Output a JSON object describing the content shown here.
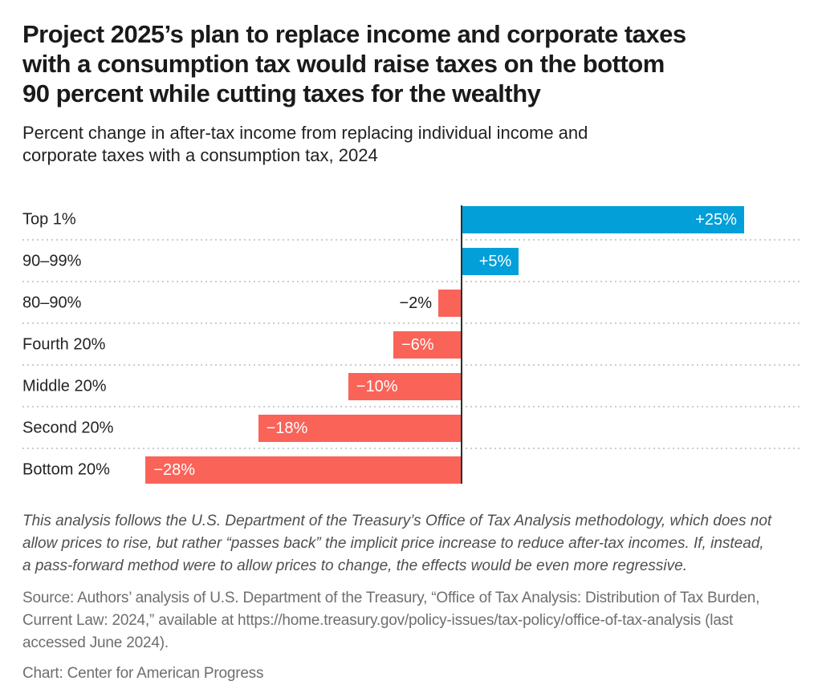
{
  "chart_data": {
    "type": "bar",
    "orientation": "horizontal",
    "title": "Project 2025’s plan to replace income and corporate taxes with a consumption tax would raise taxes on the bottom 90 percent while cutting taxes for the wealthy",
    "title_lines": [
      "Project 2025’s plan to replace income and corporate taxes",
      "with a consumption tax would raise taxes on the bottom",
      "90 percent while cutting taxes for the wealthy"
    ],
    "subtitle": "Percent change in after-tax income from replacing individual income and corporate taxes with a consumption tax, 2024",
    "subtitle_lines": [
      "Percent change in after-tax income from replacing individual income and",
      "corporate taxes with a consumption tax, 2024"
    ],
    "categories": [
      "Top 1%",
      "90–99%",
      "80–90%",
      "Fourth 20%",
      "Middle 20%",
      "Second 20%",
      "Bottom 20%"
    ],
    "values": [
      25,
      5,
      -2,
      -6,
      -10,
      -18,
      -28
    ],
    "value_labels": [
      "+25%",
      "+5%",
      "−2%",
      "−6%",
      "−10%",
      "−18%",
      "−28%"
    ],
    "unit": "%",
    "baseline": 0,
    "xlim": [
      -39,
      30
    ],
    "grid": "dotted horizontal row separators",
    "legend": "none",
    "positive_color": "#029fd9",
    "negative_color": "#fa6358",
    "axis_color": "#2d2d2d",
    "separator_color": "#cccccc",
    "category_label_color": "#242424",
    "value_label_inside_color": "#ffffff",
    "value_label_outside_color": "#1a1a1a",
    "note": "This analysis follows the U.S. Department of the Treasury’s Office of Tax Analysis methodology, which does not allow prices to rise, but rather “passes back” the implicit price increase to reduce after-tax incomes. If, instead, a pass-forward method were to allow prices to change, the effects would be even more regressive.",
    "note_lines": [
      "This analysis follows the U.S. Department of the Treasury’s Office of Tax Analysis methodology, which does not",
      "allow prices to rise, but rather “passes back” the implicit price increase to reduce after-tax incomes. If, instead,",
      "a pass-forward method were to allow prices to change, the effects would be even more regressive."
    ],
    "source": "Source: Authors’ analysis of U.S. Department of the Treasury, “Office of Tax Analysis: Distribution of Tax Burden, Current Law: 2024,” available at https://home.treasury.gov/policy-issues/tax-policy/office-of-tax-analysis (last accessed June 2024).",
    "source_lines": [
      "Source: Authors’ analysis of U.S. Department of the Treasury, “Office of Tax Analysis: Distribution of Tax Burden,",
      "Current Law: 2024,” available at https://home.treasury.gov/policy-issues/tax-policy/office-of-tax-analysis (last",
      "accessed June 2024)."
    ],
    "credit": "Chart: Center for American Progress"
  }
}
